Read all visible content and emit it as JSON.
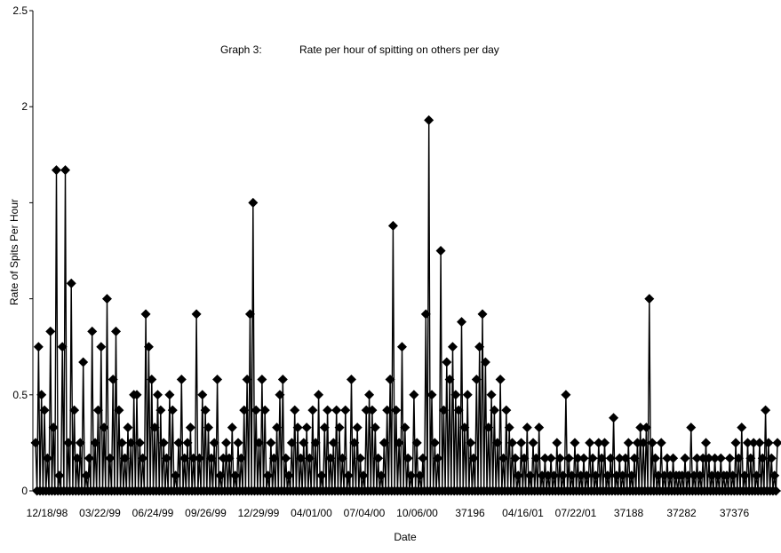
{
  "chart_data": {
    "type": "line",
    "title_prefix": "Graph 3:",
    "title": "Rate per hour of spitting on others per day",
    "xlabel": "Date",
    "ylabel": "Rate of Spits Per Hour",
    "ylim": [
      0,
      2.5
    ],
    "y_ticks": [
      {
        "value": 0,
        "label": "0"
      },
      {
        "value": 0.5,
        "label": "0.5"
      },
      {
        "value": 1.0,
        "label": ""
      },
      {
        "value": 1.5,
        "label": ""
      },
      {
        "value": 2.0,
        "label": "2"
      },
      {
        "value": 2.5,
        "label": "2.5"
      }
    ],
    "x_tick_labels": [
      "12/18/98",
      "03/22/99",
      "06/24/99",
      "09/26/99",
      "12/29/99",
      "04/01/00",
      "07/04/00",
      "10/06/00",
      "37196",
      "04/16/01",
      "07/22/01",
      "37188",
      "37282",
      "37376"
    ],
    "grid": false,
    "legend": "none",
    "marker": "diamond",
    "series_color": "#000000",
    "series": [
      {
        "values": [
          0.25,
          0.75,
          0.5,
          0.42,
          0.17,
          0.83,
          0.33,
          1.67,
          0.08,
          0.75,
          1.67,
          0.25,
          1.08,
          0.42,
          0.17,
          0.25,
          0.67,
          0.08,
          0.17,
          0.83,
          0.25,
          0.42,
          0.75,
          0.33,
          1.0,
          0.17,
          0.58,
          0.83,
          0.42,
          0.25,
          0.17,
          0.33,
          0.25,
          0.5,
          0.5,
          0.25,
          0.17,
          0.92,
          0.75,
          0.58,
          0.33,
          0.5,
          0.42,
          0.25,
          0.17,
          0.5,
          0.42,
          0.08,
          0.25,
          0.58,
          0.17,
          0.25,
          0.33,
          0.17,
          0.92,
          0.17,
          0.5,
          0.42,
          0.33,
          0.17,
          0.25,
          0.58,
          0.08,
          0.17,
          0.25,
          0.17,
          0.33,
          0.08,
          0.25,
          0.17,
          0.42,
          0.58,
          0.92,
          1.5,
          0.42,
          0.25,
          0.58,
          0.42,
          0.08,
          0.25,
          0.17,
          0.33,
          0.5,
          0.58,
          0.17,
          0.08,
          0.25,
          0.42,
          0.33,
          0.17,
          0.25,
          0.33,
          0.17,
          0.42,
          0.25,
          0.5,
          0.08,
          0.33,
          0.42,
          0.17,
          0.25,
          0.42,
          0.33,
          0.17,
          0.42,
          0.08,
          0.58,
          0.25,
          0.33,
          0.17,
          0.08,
          0.42,
          0.5,
          0.42,
          0.33,
          0.17,
          0.08,
          0.25,
          0.42,
          0.58,
          1.38,
          0.42,
          0.25,
          0.75,
          0.33,
          0.17,
          0.08,
          0.5,
          0.25,
          0.08,
          0.17,
          0.92,
          1.93,
          0.5,
          0.25,
          0.17,
          1.25,
          0.42,
          0.67,
          0.58,
          0.75,
          0.5,
          0.42,
          0.88,
          0.33,
          0.5,
          0.25,
          0.17,
          0.58,
          0.75,
          0.92,
          0.67,
          0.33,
          0.5,
          0.42,
          0.25,
          0.58,
          0.17,
          0.42,
          0.33,
          0.25,
          0.17,
          0.08,
          0.25,
          0.17,
          0.33,
          0.08,
          0.25,
          0.17,
          0.33,
          0.08,
          0.17,
          0.08,
          0.17,
          0.08,
          0.25,
          0.17,
          0.08,
          0.5,
          0.17,
          0.08,
          0.25,
          0.17,
          0.08,
          0.17,
          0.08,
          0.25,
          0.17,
          0.08,
          0.25,
          0.17,
          0.25,
          0.08,
          0.17,
          0.38,
          0.08,
          0.17,
          0.08,
          0.17,
          0.25,
          0.08,
          0.17,
          0.25,
          0.33,
          0.25,
          0.33,
          1.0,
          0.25,
          0.17,
          0.08,
          0.25,
          0.08,
          0.17,
          0.08,
          0.17,
          0.08,
          0.08,
          0.08,
          0.17,
          0.08,
          0.33,
          0.08,
          0.17,
          0.08,
          0.17,
          0.25,
          0.17,
          0.08,
          0.17,
          0.08,
          0.17,
          0.08,
          0.08,
          0.17,
          0.08,
          0.25,
          0.17,
          0.33,
          0.08,
          0.25,
          0.17,
          0.25,
          0.08,
          0.25,
          0.17,
          0.42,
          0.25,
          0.17,
          0.08,
          0.25
        ]
      }
    ]
  }
}
